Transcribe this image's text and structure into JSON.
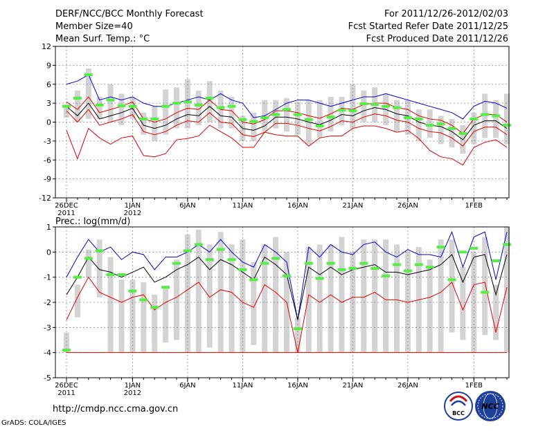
{
  "header": {
    "title": "DERF/NCC/BCC Monthly Forecast",
    "member_size": "Member Size=40",
    "variable": "Mean Surf. Temp.: °C",
    "for_range": "For 2011/12/26-2012/02/03",
    "started": "Fcst Started Refer Date 2011/12/25",
    "produced": "Fcst Produced Date 2011/12/26"
  },
  "footer": {
    "url": "http://cmdp.ncc.cma.gov.cn",
    "grads": "GrADS: COLA/IGES",
    "bcc_logo_text": "BCC",
    "ncc_logo_text": "NCC"
  },
  "colors": {
    "box": "#d3d3d3",
    "median_bar": "#55ee44",
    "upper": "#0000cc",
    "mean": "#000000",
    "lower": "#dd0000"
  },
  "chart_data": [
    {
      "type": "line",
      "title": "Mean Surf. Temp.: °C",
      "ylim": [
        -12,
        12
      ],
      "yticks": [
        -12,
        -9,
        -6,
        -3,
        0,
        3,
        6,
        9,
        12
      ],
      "xlim": [
        0,
        40
      ],
      "xticks": [
        {
          "i": 0,
          "label": "26DEC",
          "sub": "2011"
        },
        {
          "i": 6,
          "label": "1JAN",
          "sub": "2012"
        },
        {
          "i": 11,
          "label": "6JAN",
          "sub": ""
        },
        {
          "i": 16,
          "label": "11JAN",
          "sub": ""
        },
        {
          "i": 21,
          "label": "16JAN",
          "sub": ""
        },
        {
          "i": 26,
          "label": "21JAN",
          "sub": ""
        },
        {
          "i": 31,
          "label": "26JAN",
          "sub": ""
        },
        {
          "i": 37,
          "label": "1FEB",
          "sub": ""
        }
      ],
      "series": [
        {
          "name": "upper",
          "values": [
            6.0,
            6.5,
            7.5,
            3.5,
            4.0,
            3.5,
            4.0,
            3.0,
            2.5,
            2.5,
            3.0,
            3.5,
            4.0,
            3.5,
            4.5,
            3.5,
            3.0,
            0.7,
            1.0,
            2.0,
            3.0,
            3.5,
            3.5,
            3.0,
            2.5,
            3.0,
            3.5,
            4.0,
            4.0,
            4.5,
            4.0,
            3.5,
            3.0,
            2.5,
            2.0,
            1.5,
            0.5,
            2.5,
            3.3,
            3.0,
            2.2
          ]
        },
        {
          "name": "box_top",
          "values": [
            2.8,
            5.0,
            8.5,
            4.0,
            6.0,
            4.5,
            4.0,
            1.5,
            2.5,
            5.2,
            5.5,
            6.8,
            5.0,
            6.5,
            5.0,
            4.0,
            1.0,
            1.5,
            3.5,
            3.5,
            3.8,
            3.2,
            3.5,
            3.5,
            4.0,
            4.0,
            6.0,
            5.0,
            5.5,
            4.5,
            3.5,
            3.5,
            2.0,
            2.0,
            1.0,
            0.5,
            -0.5,
            1.5,
            4.5,
            3.5,
            4.5
          ]
        },
        {
          "name": "box_bottom",
          "values": [
            0.7,
            0.0,
            0.5,
            0.5,
            0.0,
            -0.5,
            0.5,
            -2.0,
            -3.0,
            -2.0,
            -1.0,
            -1.0,
            -0.5,
            0.0,
            -1.0,
            -1.0,
            -3.0,
            -3.0,
            -1.5,
            -1.0,
            -1.5,
            -2.0,
            -3.5,
            -2.5,
            -1.5,
            -0.5,
            -1.0,
            0.0,
            0.0,
            -0.5,
            -1.5,
            -2.0,
            -3.0,
            -2.5,
            -3.5,
            -4.0,
            -5.0,
            -3.5,
            -2.5,
            -2.5,
            -3.5
          ]
        },
        {
          "name": "mean",
          "values": [
            2.5,
            1.0,
            3.0,
            0.5,
            1.0,
            1.5,
            2.2,
            -0.5,
            -1.0,
            -0.5,
            0.5,
            1.2,
            1.0,
            2.5,
            1.0,
            0.8,
            -1.0,
            -1.3,
            -0.6,
            0.8,
            0.8,
            0.5,
            0.0,
            -0.4,
            0.3,
            1.2,
            1.0,
            1.8,
            2.3,
            2.0,
            1.3,
            1.0,
            0.0,
            -0.5,
            -0.7,
            -1.5,
            -2.8,
            -0.5,
            0.2,
            0.2,
            -1.0
          ]
        },
        {
          "name": "lower",
          "values": [
            -1.3,
            -5.8,
            -1.0,
            -2.5,
            -3.5,
            -2.5,
            -2.2,
            -5.3,
            -5.5,
            -5.0,
            -2.8,
            -2.6,
            -2.2,
            -0.5,
            -1.5,
            -2.5,
            -4.0,
            -4.0,
            -1.6,
            -2.0,
            -2.2,
            -2.2,
            -3.8,
            -2.5,
            -2.2,
            -2.2,
            -1.0,
            -0.6,
            -0.6,
            -1.0,
            -1.6,
            -1.3,
            -2.6,
            -4.5,
            -5.5,
            -5.8,
            -6.8,
            -4.0,
            -3.2,
            -2.8,
            -4.0
          ]
        },
        {
          "name": "mean_plus",
          "values": [
            3.2,
            2.0,
            4.0,
            1.5,
            2.0,
            2.5,
            3.2,
            0.5,
            0.0,
            0.5,
            1.5,
            2.2,
            2.0,
            3.5,
            2.0,
            1.8,
            0.0,
            -0.3,
            0.4,
            1.8,
            1.8,
            1.5,
            1.0,
            0.6,
            1.3,
            2.2,
            2.0,
            2.8,
            3.0,
            3.0,
            2.3,
            2.0,
            1.0,
            0.5,
            0.3,
            -0.5,
            -1.8,
            0.5,
            1.2,
            1.2,
            0.0
          ]
        },
        {
          "name": "mean_minus",
          "values": [
            1.8,
            0.0,
            2.0,
            -0.5,
            0.0,
            0.5,
            1.2,
            -1.5,
            -2.0,
            -1.5,
            -0.5,
            0.2,
            0.0,
            1.5,
            0.0,
            -0.2,
            -2.0,
            -2.3,
            -1.6,
            -0.2,
            -0.2,
            -0.5,
            -1.0,
            -1.4,
            -0.7,
            0.2,
            0.0,
            0.8,
            1.3,
            1.0,
            0.3,
            0.0,
            -1.0,
            -1.5,
            -1.7,
            -2.5,
            -3.8,
            -1.5,
            -0.8,
            -0.8,
            -2.0
          ]
        },
        {
          "name": "median_bar",
          "values": [
            2.5,
            3.8,
            7.5,
            2.7,
            3.5,
            2.6,
            2.5,
            0.5,
            0.5,
            2.5,
            3.0,
            3.2,
            2.7,
            3.8,
            2.3,
            2.5,
            0.4,
            0.1,
            0.7,
            1.2,
            2.0,
            1.2,
            0.4,
            -0.6,
            0.8,
            1.9,
            1.8,
            2.9,
            2.8,
            2.5,
            2.3,
            0.7,
            0.5,
            -0.5,
            -0.3,
            -1.0,
            -1.8,
            0.5,
            1.2,
            1.0,
            -0.5
          ]
        }
      ]
    },
    {
      "type": "line",
      "title": "Prec.: log(mm/d)",
      "ylim": [
        -5,
        1
      ],
      "yticks": [
        -5,
        -4,
        -3,
        -2,
        -1,
        0,
        1
      ],
      "xlim": [
        0,
        40
      ],
      "xticks": [
        {
          "i": 0,
          "label": "26DEC",
          "sub": "2011"
        },
        {
          "i": 6,
          "label": "1JAN",
          "sub": "2012"
        },
        {
          "i": 11,
          "label": "6JAN",
          "sub": ""
        },
        {
          "i": 16,
          "label": "11JAN",
          "sub": ""
        },
        {
          "i": 21,
          "label": "16JAN",
          "sub": ""
        },
        {
          "i": 26,
          "label": "21JAN",
          "sub": ""
        },
        {
          "i": 31,
          "label": "26JAN",
          "sub": ""
        },
        {
          "i": 37,
          "label": "1FEB",
          "sub": ""
        }
      ],
      "series": [
        {
          "name": "upper",
          "values": [
            -1.0,
            -0.2,
            0.5,
            0.0,
            0.2,
            -0.3,
            0.0,
            -0.1,
            -0.7,
            -0.2,
            -0.2,
            0.0,
            0.3,
            0.0,
            0.5,
            0.0,
            -0.4,
            -0.6,
            0.3,
            0.0,
            -0.4,
            -2.7,
            0.2,
            -0.2,
            0.3,
            0.0,
            -0.1,
            0.3,
            0.4,
            0.0,
            -0.2,
            0.1,
            -0.1,
            -0.1,
            -0.2,
            0.8,
            -0.6,
            0.6,
            0.8,
            -1.1,
            0.8
          ]
        },
        {
          "name": "box_top",
          "values": [
            -3.2,
            -1.3,
            0.1,
            0.5,
            -0.2,
            -1.1,
            -1.1,
            -1.2,
            -1.7,
            -1.4,
            -0.3,
            0.7,
            0.9,
            0.3,
            0.8,
            0.3,
            0.5,
            -0.4,
            0.3,
            0.6,
            0.0,
            -2.6,
            0.2,
            0.3,
            0.3,
            0.6,
            0.0,
            0.5,
            0.5,
            0.5,
            0.3,
            0.0,
            0.2,
            -0.3,
            0.5,
            0.5,
            -0.6,
            0.0,
            0.6,
            -1.3,
            1.0
          ]
        },
        {
          "name": "box_bottom",
          "values": [
            -4.0,
            -2.6,
            -1.0,
            -1.8,
            -4.0,
            -4.0,
            -4.0,
            -4.0,
            -4.0,
            -3.6,
            -3.5,
            -4.0,
            -4.0,
            -3.8,
            -4.0,
            -4.0,
            -4.0,
            -3.7,
            -4.0,
            -4.0,
            -4.0,
            -4.0,
            -4.0,
            -4.0,
            -4.0,
            -4.0,
            -4.0,
            -4.0,
            -4.0,
            -4.0,
            -4.0,
            -4.0,
            -4.0,
            -4.0,
            -4.0,
            -3.2,
            -3.5,
            -4.0,
            -3.3,
            -3.5,
            -4.0
          ]
        },
        {
          "name": "mean",
          "values": [
            -1.7,
            -1.0,
            -0.2,
            -0.7,
            -0.8,
            -1.0,
            -0.8,
            -0.6,
            -1.2,
            -1.0,
            -0.7,
            -0.5,
            -0.2,
            -0.7,
            -0.3,
            -0.5,
            -0.8,
            -1.1,
            -0.2,
            -0.5,
            -0.9,
            -2.7,
            -0.6,
            -0.9,
            -0.6,
            -0.9,
            -0.7,
            -0.6,
            -0.5,
            -0.8,
            -0.8,
            -0.9,
            -0.8,
            -0.7,
            -0.5,
            -0.1,
            -1.2,
            -0.2,
            -0.1,
            -1.7,
            -0.1
          ]
        },
        {
          "name": "lower",
          "values": [
            -2.7,
            -1.8,
            -1.0,
            -1.6,
            -1.8,
            -2.0,
            -1.8,
            -1.7,
            -2.3,
            -2.0,
            -1.8,
            -1.5,
            -1.2,
            -1.8,
            -1.5,
            -1.6,
            -2.0,
            -2.2,
            -1.3,
            -1.6,
            -2.0,
            -4.0,
            -1.7,
            -2.0,
            -1.7,
            -2.0,
            -1.8,
            -1.8,
            -1.6,
            -1.9,
            -1.9,
            -2.0,
            -1.9,
            -1.8,
            -1.6,
            -1.2,
            -2.3,
            -1.3,
            -1.2,
            -3.2,
            -1.4
          ]
        },
        {
          "name": "floor",
          "values": [
            -4.0,
            -4.0,
            -4.0,
            -4.0,
            -4.0,
            -4.0,
            -4.0,
            -4.0,
            -4.0,
            -4.0,
            -4.0,
            -4.0,
            -4.0,
            -4.0,
            -4.0,
            -4.0,
            -4.0,
            -4.0,
            -4.0,
            -4.0,
            -4.0,
            -4.0,
            -4.0,
            -4.0,
            -4.0,
            -4.0,
            -4.0,
            -4.0,
            -4.0,
            -4.0,
            -4.0,
            -4.0,
            -4.0,
            -4.0,
            -4.0,
            -4.0,
            -4.0,
            -4.0,
            -4.0,
            -4.0,
            -4.0
          ]
        },
        {
          "name": "median_bar",
          "values": [
            -3.9,
            -1.0,
            -0.25,
            0.05,
            -0.9,
            -0.9,
            -1.55,
            -1.9,
            -2.2,
            -1.4,
            -0.45,
            0.05,
            0.3,
            -0.3,
            0.1,
            -0.3,
            -0.7,
            -1.1,
            -0.45,
            -0.25,
            -0.95,
            -3.05,
            -0.45,
            -1.05,
            -0.45,
            -0.7,
            -0.65,
            -0.45,
            -0.65,
            -0.95,
            -0.5,
            -0.75,
            -0.5,
            -0.6,
            0.2,
            -1.1,
            0.0,
            0.15,
            -1.6,
            -0.35,
            0.3
          ]
        }
      ]
    }
  ]
}
